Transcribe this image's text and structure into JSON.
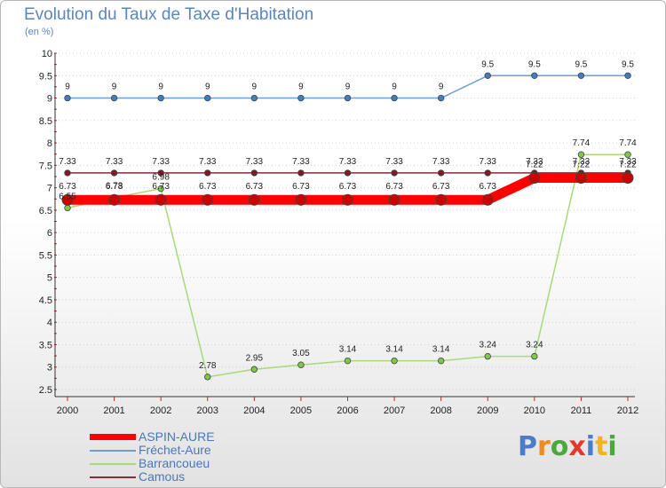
{
  "page": {
    "title": "Evolution du Taux de Taxe d'Habitation",
    "subtitle": "(en %)",
    "brand": {
      "letters": [
        {
          "ch": "P",
          "color": "#4a7cc9"
        },
        {
          "ch": "r",
          "color": "#f08a24"
        },
        {
          "ch": "o",
          "color": "#4aa83c"
        },
        {
          "ch": "x",
          "color": "#e23a2a"
        },
        {
          "ch": "i",
          "color": "#4a7cc9"
        },
        {
          "ch": "t",
          "color": "#f2b320"
        },
        {
          "ch": "i",
          "color": "#4aa83c"
        }
      ]
    }
  },
  "chart_data": {
    "type": "line",
    "title": "Evolution du Taux de Taxe d'Habitation",
    "ylabel": "(en %)",
    "xlabel": "",
    "x": [
      "2000",
      "2001",
      "2002",
      "2003",
      "2004",
      "2005",
      "2006",
      "2007",
      "2008",
      "2009",
      "2010",
      "2011",
      "2012"
    ],
    "ylim": [
      2.5,
      10
    ],
    "yticks": [
      "2.5",
      "3",
      "3.5",
      "4",
      "4.5",
      "5",
      "5.5",
      "6",
      "6.5",
      "7",
      "7.5",
      "8",
      "8.5",
      "9",
      "9.5",
      "10"
    ],
    "grid": "horizontal",
    "legend_position": "bottom-left",
    "series": [
      {
        "name": "ASPIN-AURE",
        "color": "#ff0000",
        "thick": true,
        "values": [
          6.73,
          6.73,
          6.73,
          6.73,
          6.73,
          6.73,
          6.73,
          6.73,
          6.73,
          6.73,
          7.22,
          7.22,
          7.22
        ],
        "labels": [
          "6.73",
          "6.73",
          "6.73",
          "6.73",
          "6.73",
          "6.73",
          "6.73",
          "6.73",
          "6.73",
          "6.73",
          "7.22",
          "7.22",
          "7.22"
        ]
      },
      {
        "name": "Fréchet-Aure",
        "color": "#6f9fd0",
        "thick": false,
        "values": [
          9,
          9,
          9,
          9,
          9,
          9,
          9,
          9,
          9,
          9.5,
          9.5,
          9.5,
          9.5
        ],
        "labels": [
          "9",
          "9",
          "9",
          "9",
          "9",
          "9",
          "9",
          "9",
          "9",
          "9.5",
          "9.5",
          "9.5",
          "9.5"
        ]
      },
      {
        "name": "Barrancoueu",
        "color": "#a9d978",
        "thick": false,
        "values": [
          6.55,
          6.78,
          6.98,
          2.78,
          2.95,
          3.05,
          3.14,
          3.14,
          3.14,
          3.24,
          3.24,
          7.74,
          7.74
        ],
        "labels": [
          "6.55",
          "6.78",
          "6.98",
          "2.78",
          "2.95",
          "3.05",
          "3.14",
          "3.14",
          "3.14",
          "3.24",
          "3.24",
          "7.74",
          "7.74"
        ]
      },
      {
        "name": "Camous",
        "color": "#8a2a36",
        "thick": false,
        "values": [
          7.33,
          7.33,
          7.33,
          7.33,
          7.33,
          7.33,
          7.33,
          7.33,
          7.33,
          7.33,
          7.33,
          7.33,
          7.33
        ],
        "labels": [
          "7.33",
          "7.33",
          "7.33",
          "7.33",
          "7.33",
          "7.33",
          "7.33",
          "7.33",
          "7.33",
          "7.33",
          "7.33",
          "7.33",
          "7.33"
        ]
      }
    ]
  }
}
